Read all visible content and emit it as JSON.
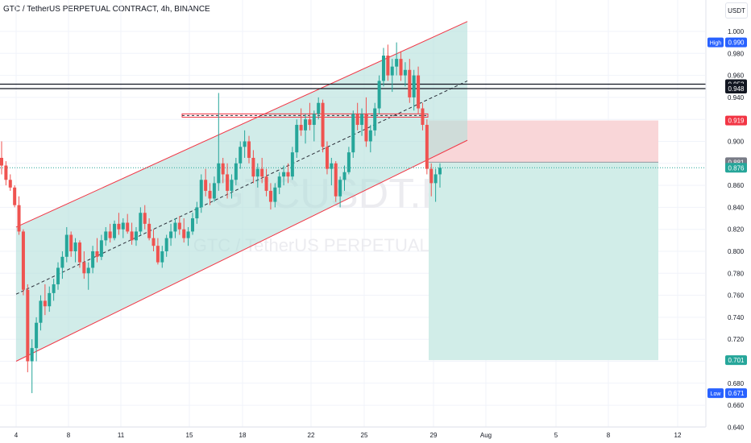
{
  "header": {
    "title": "GTC / TetherUS PERPETUAL CONTRACT, 4h, BINANCE",
    "unit": "USDT"
  },
  "watermark": {
    "symbol": "GTCUSDT.P, 4h",
    "name": "GTC / TetherUS PERPETUAL CONTRACT"
  },
  "colors": {
    "up": "#26a69a",
    "down": "#ef5350",
    "channel_fill": "#b2dfdb",
    "channel_line": "#f23645",
    "stop_zone": "#f9d6d8",
    "target_zone": "#d1ede8"
  },
  "markers": {
    "high": {
      "label": "High",
      "value": "0.990"
    },
    "low": {
      "label": "Low",
      "value": "0.671"
    }
  },
  "price_labels": [
    {
      "value": "0.952",
      "style": "black"
    },
    {
      "value": "0.948",
      "style": "black"
    },
    {
      "value": "0.919",
      "style": "red"
    },
    {
      "value": "0.881",
      "style": "gray"
    },
    {
      "value": "0.876",
      "style": "green"
    },
    {
      "value": "0.701",
      "style": "green"
    }
  ],
  "chart_data": {
    "type": "candlestick",
    "title": "GTC / TetherUS PERPETUAL CONTRACT, 4h, BINANCE",
    "ylabel": "USDT",
    "ylim": [
      0.64,
      1.0
    ],
    "y_ticks": [
      "1.000",
      "0.980",
      "0.960",
      "0.940",
      "0.920",
      "0.900",
      "0.880",
      "0.860",
      "0.840",
      "0.820",
      "0.800",
      "0.780",
      "0.760",
      "0.740",
      "0.720",
      "0.700",
      "0.680",
      "0.660",
      "0.640"
    ],
    "x_ticks": [
      "4",
      "8",
      "11",
      "15",
      "18",
      "22",
      "25",
      "29",
      "Aug",
      "5",
      "8",
      "12"
    ],
    "grid": true,
    "high": 0.99,
    "low": 0.671,
    "current_price": 0.876,
    "horizontal_levels": [
      0.952,
      0.948
    ],
    "resistance_zone": [
      0.922,
      0.925
    ],
    "channel": {
      "upper_start": 0.822,
      "upper_end": 1.009,
      "lower_start": 0.7,
      "lower_end": 0.901,
      "mid_start": 0.761,
      "mid_end": 0.955
    },
    "position": {
      "type": "short",
      "entry": 0.881,
      "stop": 0.919,
      "target": 0.701
    },
    "candles": [
      [
        0.885,
        0.9,
        0.87,
        0.878
      ],
      [
        0.878,
        0.882,
        0.86,
        0.865
      ],
      [
        0.865,
        0.87,
        0.855,
        0.858
      ],
      [
        0.858,
        0.86,
        0.84,
        0.842
      ],
      [
        0.842,
        0.85,
        0.815,
        0.818
      ],
      [
        0.818,
        0.82,
        0.76,
        0.765
      ],
      [
        0.765,
        0.77,
        0.69,
        0.7
      ],
      [
        0.7,
        0.72,
        0.671,
        0.712
      ],
      [
        0.712,
        0.74,
        0.7,
        0.735
      ],
      [
        0.735,
        0.76,
        0.728,
        0.755
      ],
      [
        0.755,
        0.77,
        0.742,
        0.75
      ],
      [
        0.75,
        0.768,
        0.745,
        0.762
      ],
      [
        0.762,
        0.775,
        0.755,
        0.77
      ],
      [
        0.77,
        0.79,
        0.765,
        0.785
      ],
      [
        0.785,
        0.8,
        0.775,
        0.795
      ],
      [
        0.795,
        0.822,
        0.79,
        0.815
      ],
      [
        0.815,
        0.818,
        0.795,
        0.8
      ],
      [
        0.8,
        0.812,
        0.79,
        0.808
      ],
      [
        0.808,
        0.81,
        0.785,
        0.79
      ],
      [
        0.79,
        0.8,
        0.775,
        0.78
      ],
      [
        0.78,
        0.79,
        0.765,
        0.785
      ],
      [
        0.785,
        0.805,
        0.78,
        0.8
      ],
      [
        0.8,
        0.812,
        0.79,
        0.795
      ],
      [
        0.795,
        0.815,
        0.792,
        0.81
      ],
      [
        0.81,
        0.822,
        0.805,
        0.818
      ],
      [
        0.818,
        0.825,
        0.808,
        0.812
      ],
      [
        0.812,
        0.828,
        0.81,
        0.825
      ],
      [
        0.825,
        0.835,
        0.815,
        0.82
      ],
      [
        0.82,
        0.83,
        0.812,
        0.826
      ],
      [
        0.826,
        0.834,
        0.816,
        0.818
      ],
      [
        0.818,
        0.826,
        0.806,
        0.81
      ],
      [
        0.81,
        0.822,
        0.805,
        0.818
      ],
      [
        0.818,
        0.84,
        0.815,
        0.835
      ],
      [
        0.835,
        0.842,
        0.82,
        0.825
      ],
      [
        0.825,
        0.83,
        0.81,
        0.812
      ],
      [
        0.812,
        0.82,
        0.8,
        0.805
      ],
      [
        0.805,
        0.812,
        0.788,
        0.79
      ],
      [
        0.79,
        0.805,
        0.785,
        0.8
      ],
      [
        0.8,
        0.815,
        0.795,
        0.812
      ],
      [
        0.812,
        0.825,
        0.805,
        0.818
      ],
      [
        0.818,
        0.83,
        0.812,
        0.826
      ],
      [
        0.826,
        0.832,
        0.815,
        0.82
      ],
      [
        0.82,
        0.83,
        0.808,
        0.812
      ],
      [
        0.812,
        0.822,
        0.805,
        0.818
      ],
      [
        0.818,
        0.835,
        0.815,
        0.83
      ],
      [
        0.83,
        0.845,
        0.825,
        0.84
      ],
      [
        0.84,
        0.87,
        0.835,
        0.865
      ],
      [
        0.865,
        0.875,
        0.85,
        0.855
      ],
      [
        0.855,
        0.862,
        0.842,
        0.848
      ],
      [
        0.848,
        0.868,
        0.845,
        0.862
      ],
      [
        0.862,
        0.944,
        0.855,
        0.88
      ],
      [
        0.88,
        0.885,
        0.862,
        0.87
      ],
      [
        0.87,
        0.88,
        0.848,
        0.855
      ],
      [
        0.855,
        0.87,
        0.848,
        0.865
      ],
      [
        0.865,
        0.885,
        0.86,
        0.88
      ],
      [
        0.88,
        0.9,
        0.875,
        0.895
      ],
      [
        0.895,
        0.91,
        0.885,
        0.9
      ],
      [
        0.9,
        0.905,
        0.88,
        0.885
      ],
      [
        0.885,
        0.892,
        0.862,
        0.868
      ],
      [
        0.868,
        0.88,
        0.858,
        0.875
      ],
      [
        0.875,
        0.885,
        0.862,
        0.868
      ],
      [
        0.868,
        0.875,
        0.85,
        0.855
      ],
      [
        0.855,
        0.862,
        0.838,
        0.845
      ],
      [
        0.845,
        0.862,
        0.84,
        0.858
      ],
      [
        0.858,
        0.872,
        0.852,
        0.868
      ],
      [
        0.868,
        0.878,
        0.86,
        0.872
      ],
      [
        0.872,
        0.88,
        0.862,
        0.868
      ],
      [
        0.868,
        0.895,
        0.865,
        0.89
      ],
      [
        0.89,
        0.92,
        0.885,
        0.915
      ],
      [
        0.915,
        0.93,
        0.905,
        0.91
      ],
      [
        0.91,
        0.925,
        0.898,
        0.92
      ],
      [
        0.92,
        0.935,
        0.91,
        0.915
      ],
      [
        0.915,
        0.928,
        0.9,
        0.925
      ],
      [
        0.925,
        0.94,
        0.92,
        0.935
      ],
      [
        0.935,
        0.938,
        0.89,
        0.895
      ],
      [
        0.895,
        0.9,
        0.87,
        0.875
      ],
      [
        0.875,
        0.885,
        0.86,
        0.88
      ],
      [
        0.88,
        0.882,
        0.845,
        0.85
      ],
      [
        0.85,
        0.868,
        0.84,
        0.865
      ],
      [
        0.865,
        0.878,
        0.855,
        0.872
      ],
      [
        0.872,
        0.895,
        0.87,
        0.89
      ],
      [
        0.89,
        0.928,
        0.885,
        0.925
      ],
      [
        0.925,
        0.935,
        0.91,
        0.915
      ],
      [
        0.915,
        0.93,
        0.905,
        0.925
      ],
      [
        0.925,
        0.94,
        0.895,
        0.9
      ],
      [
        0.9,
        0.915,
        0.89,
        0.91
      ],
      [
        0.91,
        0.935,
        0.905,
        0.93
      ],
      [
        0.93,
        0.96,
        0.925,
        0.955
      ],
      [
        0.955,
        0.985,
        0.95,
        0.978
      ],
      [
        0.978,
        0.988,
        0.955,
        0.96
      ],
      [
        0.96,
        0.975,
        0.945,
        0.968
      ],
      [
        0.968,
        0.99,
        0.96,
        0.975
      ],
      [
        0.975,
        0.982,
        0.955,
        0.96
      ],
      [
        0.96,
        0.972,
        0.95,
        0.965
      ],
      [
        0.965,
        0.975,
        0.935,
        0.94
      ],
      [
        0.94,
        0.965,
        0.928,
        0.96
      ],
      [
        0.96,
        0.968,
        0.925,
        0.93
      ],
      [
        0.93,
        0.935,
        0.91,
        0.915
      ],
      [
        0.915,
        0.92,
        0.87,
        0.875
      ],
      [
        0.875,
        0.88,
        0.85,
        0.862
      ],
      [
        0.862,
        0.875,
        0.845,
        0.87
      ],
      [
        0.87,
        0.88,
        0.858,
        0.876
      ]
    ]
  }
}
